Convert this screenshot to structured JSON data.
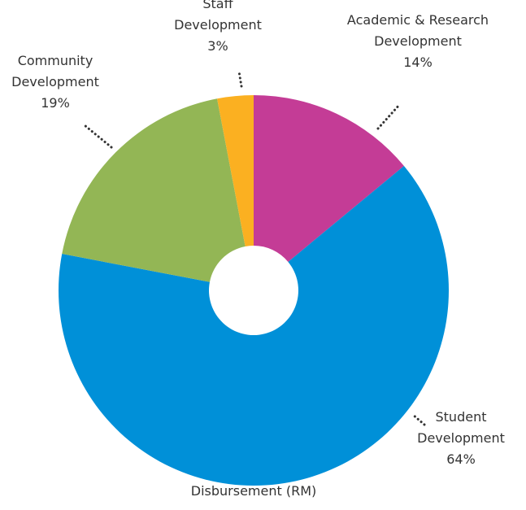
{
  "chart_data": {
    "type": "pie",
    "title": "Disbursement (RM)",
    "categories": [
      "Academic & Research Development",
      "Student Development",
      "Community Development",
      "Staff Development"
    ],
    "values": [
      14,
      64,
      19,
      3
    ],
    "value_labels": [
      "14%",
      "64%",
      "19%",
      "3%"
    ],
    "colors": [
      "#c43c96",
      "#0090d8",
      "#93b655",
      "#fbb021"
    ]
  }
}
